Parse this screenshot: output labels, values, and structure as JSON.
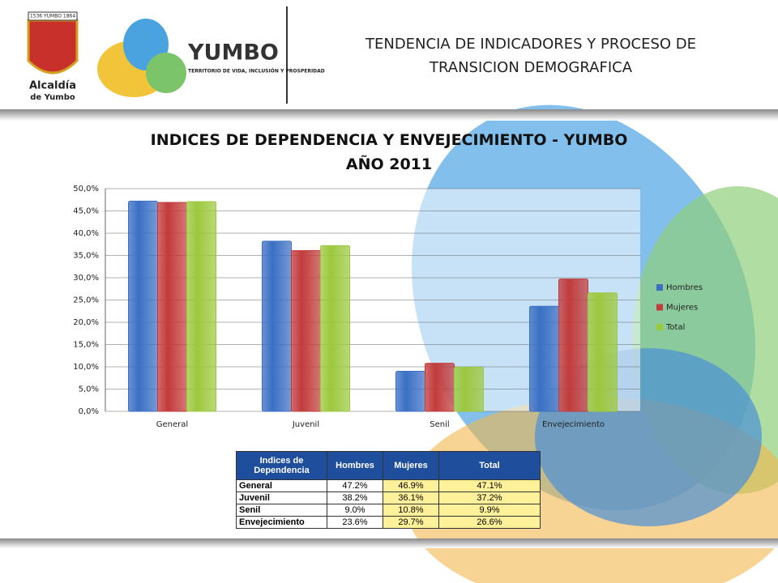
{
  "header": {
    "title": "TENDENCIA DE INDICADORES Y PROCESO DE TRANSICION DEMOGRAFICA",
    "logo_left": {
      "banner": "1536 YUMBO 1864",
      "line1": "Alcaldía",
      "line2": "de Yumbo"
    },
    "logo_right": {
      "name": "YUMBO",
      "tagline": "TERRITORIO DE VIDA, INCLUSIÓN Y PROSPERIDAD"
    }
  },
  "chart_data": {
    "type": "bar",
    "title": "INDICES DE DEPENDENCIA Y ENVEJECIMIENTO - YUMBO AÑO 2011",
    "categories": [
      "General",
      "Juvenil",
      "Senil",
      "Envejecimiento"
    ],
    "series": [
      {
        "name": "Hombres",
        "color": "#3a6fc4",
        "values": [
          47.2,
          38.2,
          9.0,
          23.6
        ]
      },
      {
        "name": "Mujeres",
        "color": "#c23b3b",
        "values": [
          46.9,
          36.1,
          10.8,
          29.7
        ]
      },
      {
        "name": "Total",
        "color": "#9cc83c",
        "values": [
          47.1,
          37.2,
          9.9,
          26.6
        ]
      }
    ],
    "ylim": [
      0,
      50
    ],
    "yticks": [
      {
        "value": 0,
        "label": "0,0%"
      },
      {
        "value": 5,
        "label": "5,0%"
      },
      {
        "value": 10,
        "label": "10,0%"
      },
      {
        "value": 15,
        "label": "15,0%"
      },
      {
        "value": 20,
        "label": "20,0%"
      },
      {
        "value": 25,
        "label": "25,0%"
      },
      {
        "value": 30,
        "label": "30,0%"
      },
      {
        "value": 35,
        "label": "35,0%"
      },
      {
        "value": 40,
        "label": "40,0%"
      },
      {
        "value": 45,
        "label": "45,0%"
      },
      {
        "value": 50,
        "label": "50,0%"
      }
    ],
    "grid": true,
    "legend": "right"
  },
  "table": {
    "header": [
      "Indices de Dependencia",
      "Hombres",
      "Mujeres",
      "Total"
    ],
    "rows": [
      [
        "General",
        "47.2%",
        "46.9%",
        "47.1%"
      ],
      [
        "Juvenil",
        "38.2%",
        "36.1%",
        "37.2%"
      ],
      [
        "Senil",
        "9.0%",
        "10.8%",
        "9.9%"
      ],
      [
        "Envejecimiento",
        "23.6%",
        "29.7%",
        "26.6%"
      ]
    ]
  }
}
